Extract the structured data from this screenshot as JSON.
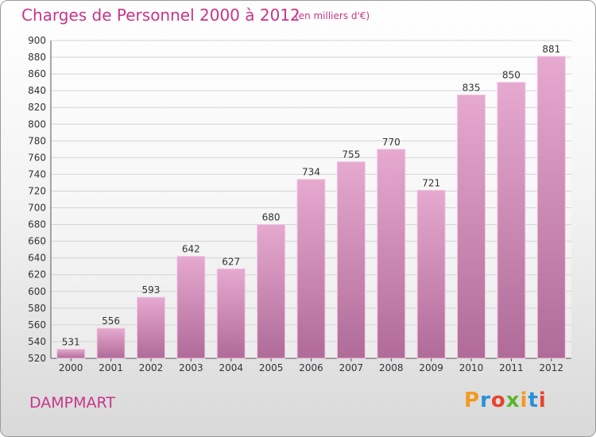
{
  "header": {
    "title": "Charges de Personnel 2000 à 2012",
    "subtitle": "(en milliers d'€)"
  },
  "footer": {
    "city": "DAMPMART",
    "logo": "Proxiti"
  },
  "colors": {
    "accent": "#c8358a",
    "bar_top": "#e6a9d0",
    "bar_bottom": "#b06b98",
    "logo": [
      "#f39a1e",
      "#2a8fd8",
      "#e8432f",
      "#5cb531",
      "#f39a1e",
      "#2a8fd8",
      "#e8432f"
    ]
  },
  "chart_data": {
    "type": "bar",
    "title": "Charges de Personnel 2000 à 2012",
    "subtitle": "(en milliers d'€)",
    "categories": [
      "2000",
      "2001",
      "2002",
      "2003",
      "2004",
      "2005",
      "2006",
      "2007",
      "2008",
      "2009",
      "2010",
      "2011",
      "2012"
    ],
    "values": [
      531,
      556,
      593,
      642,
      627,
      680,
      734,
      755,
      770,
      721,
      835,
      850,
      881
    ],
    "ylim": [
      520,
      900
    ],
    "yticks": [
      520,
      540,
      560,
      580,
      600,
      620,
      640,
      660,
      680,
      700,
      720,
      740,
      760,
      780,
      800,
      820,
      840,
      860,
      880,
      900
    ],
    "grid": true,
    "xlabel": "",
    "ylabel": ""
  }
}
